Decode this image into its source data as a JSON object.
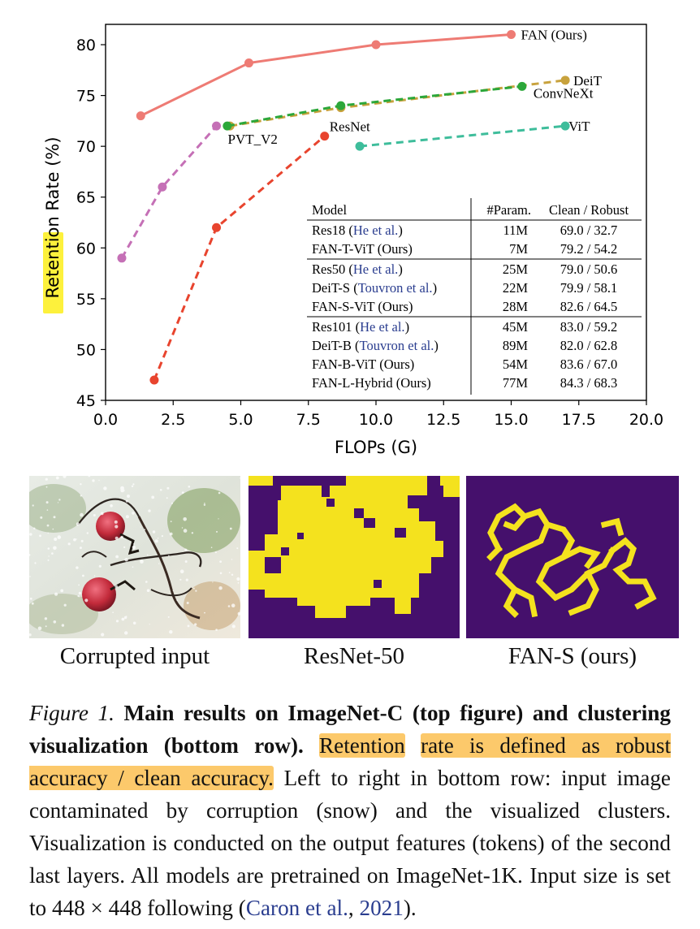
{
  "chart_data": {
    "type": "line",
    "xlabel": "FLOPs (G)",
    "ylabel_highlight": "Retention",
    "ylabel_rest": " Rate (%)",
    "xlim": [
      0,
      20
    ],
    "ylim": [
      45,
      82
    ],
    "xticks": [
      0.0,
      2.5,
      5.0,
      7.5,
      10.0,
      12.5,
      15.0,
      17.5,
      20.0
    ],
    "xtick_labels": [
      "0.0",
      "2.5",
      "5.0",
      "7.5",
      "10.0",
      "12.5",
      "15.0",
      "17.5",
      "20.0"
    ],
    "yticks": [
      45,
      50,
      55,
      60,
      65,
      70,
      75,
      80
    ],
    "ytick_labels": [
      "45",
      "50",
      "55",
      "60",
      "65",
      "70",
      "75",
      "80"
    ],
    "grid": false,
    "series": [
      {
        "name": "FAN (Ours)",
        "color": "#ee7b74",
        "dashed": false,
        "x": [
          1.3,
          5.3,
          10.0,
          15.0
        ],
        "y": [
          73.0,
          78.2,
          80.0,
          81.0
        ]
      },
      {
        "name": "DeiT",
        "color": "#c8a23d",
        "dashed": true,
        "x": [
          4.6,
          8.7,
          17.0
        ],
        "y": [
          72.0,
          73.8,
          76.5
        ]
      },
      {
        "name": "ConvNeXt",
        "color": "#2ca73a",
        "dashed": true,
        "x": [
          4.5,
          8.7,
          15.4
        ],
        "y": [
          72.0,
          74.0,
          75.9
        ]
      },
      {
        "name": "PVT_V2",
        "color": "#c570b6",
        "dashed": true,
        "x": [
          0.6,
          2.1,
          4.1
        ],
        "y": [
          59.0,
          66.0,
          72.0
        ]
      },
      {
        "name": "ResNet",
        "color": "#e8442e",
        "dashed": true,
        "x": [
          1.8,
          4.1,
          8.1
        ],
        "y": [
          47.0,
          62.0,
          71.0
        ]
      },
      {
        "name": "ViT",
        "color": "#3ebd9b",
        "dashed": true,
        "x": [
          9.4,
          17.0
        ],
        "y": [
          70.0,
          72.0
        ]
      }
    ],
    "table": {
      "headers": [
        "Model",
        "#Param.",
        "Clean / Robust"
      ],
      "groups": [
        [
          {
            "model": "Res18",
            "cite": "He et al.",
            "params": "11M",
            "values": "69.0 / 32.7"
          },
          {
            "model": "FAN-T-ViT (Ours)",
            "cite": "",
            "params": "7M",
            "values": "79.2 / 54.2"
          }
        ],
        [
          {
            "model": "Res50",
            "cite": "He et al.",
            "params": "25M",
            "values": "79.0 / 50.6"
          },
          {
            "model": "DeiT-S",
            "cite": "Touvron et al.",
            "params": "22M",
            "values": "79.9 / 58.1"
          },
          {
            "model": "FAN-S-ViT (Ours)",
            "cite": "",
            "params": "28M",
            "values": "82.6 / 64.5"
          }
        ],
        [
          {
            "model": "Res101",
            "cite": "He et al.",
            "params": "45M",
            "values": "83.0 / 59.2"
          },
          {
            "model": "DeiT-B",
            "cite": "Touvron et al.",
            "params": "89M",
            "values": "82.0 / 62.8"
          },
          {
            "model": "FAN-B-ViT (Ours)",
            "cite": "",
            "params": "54M",
            "values": "83.6 / 67.0"
          },
          {
            "model": "FAN-L-Hybrid (Ours)",
            "cite": "",
            "params": "77M",
            "values": "84.3 / 68.3"
          }
        ]
      ]
    }
  },
  "panels": {
    "input_caption": "Corrupted input",
    "resnet_caption": "ResNet-50",
    "fan_caption": "FAN-S (ours)",
    "cluster_fg": "#f4e21e",
    "cluster_bg": "#45106c"
  },
  "caption": {
    "label": "Figure 1.",
    "bold": "Main results on ImageNet-C (top figure) and clustering visualization (bottom row).",
    "highlight_word": "Retention",
    "highlight_rest": "rate is defined as robust accuracy / clean accuracy.",
    "body": "Left to right in bottom row: input image contaminated by corruption (snow) and the visualized clusters. Visualization is conducted on the output features (tokens) of the second last layers. All models are pretrained on ImageNet-1K. Input size is set to 448 × 448 following (",
    "cite_authors": "Caron et al.",
    "cite_sep": ", ",
    "cite_year": "2021",
    "end": ")."
  }
}
